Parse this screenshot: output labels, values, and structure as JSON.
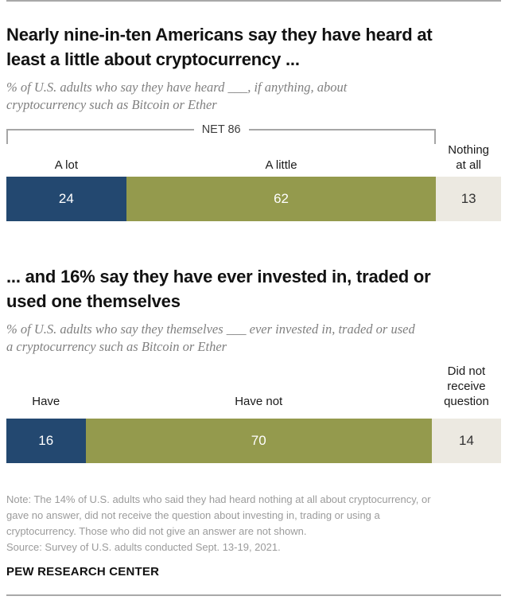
{
  "colors": {
    "dark_blue": "#234870",
    "olive_green": "#949A4D",
    "light_gray": "#ECE9E1",
    "rule_gray": "#A9A9A9"
  },
  "chart_data": [
    {
      "type": "bar",
      "orientation": "horizontal",
      "stacked": true,
      "unit": "percent",
      "axis_range": [
        0,
        100
      ],
      "title": "Nearly nine-in-ten Americans say they have heard at least a little about cryptocurrency ...",
      "title_lines": [
        "Nearly nine-in-ten Americans say they have heard at",
        "least a little about cryptocurrency ..."
      ],
      "subtitle": "% of U.S. adults who say they have heard ___, if anything, about cryptocurrency such as Bitcoin or Ether",
      "subtitle_lines": [
        "% of U.S. adults who say they have heard ___, if anything, about",
        "cryptocurrency such as Bitcoin or Ether"
      ],
      "net": {
        "label": "NET 86",
        "value": 86
      },
      "categories": [
        "A lot",
        "A little",
        "Nothing at all"
      ],
      "values": [
        24,
        62,
        13
      ],
      "segments": [
        {
          "label": "A lot",
          "value": 24,
          "color": "#234870",
          "value_color": "#FFFFFF"
        },
        {
          "label": "A little",
          "value": 62,
          "color": "#949A4D",
          "value_color": "#FFFFFF"
        },
        {
          "label": "Nothing at all",
          "label_lines": [
            "Nothing",
            "at all"
          ],
          "value": 13,
          "color": "#ECE9E1",
          "value_color": "#333333"
        }
      ]
    },
    {
      "type": "bar",
      "orientation": "horizontal",
      "stacked": true,
      "unit": "percent",
      "axis_range": [
        0,
        100
      ],
      "title": "... and 16% say they have ever invested in, traded or used one themselves",
      "title_lines": [
        "... and 16% say they have ever invested in, traded or",
        "used one themselves"
      ],
      "subtitle": "% of U.S. adults who say they themselves ___ ever invested in, traded or used a cryptocurrency such as Bitcoin or Ether",
      "subtitle_lines": [
        "% of U.S. adults who say they themselves ___ ever invested in, traded or used",
        "a cryptocurrency such as Bitcoin or Ether"
      ],
      "categories": [
        "Have",
        "Have not",
        "Did not receive question"
      ],
      "values": [
        16,
        70,
        14
      ],
      "segments": [
        {
          "label": "Have",
          "value": 16,
          "color": "#234870",
          "value_color": "#FFFFFF"
        },
        {
          "label": "Have not",
          "value": 70,
          "color": "#949A4D",
          "value_color": "#FFFFFF"
        },
        {
          "label": "Did not receive question",
          "label_lines": [
            "Did not",
            "receive",
            "question"
          ],
          "value": 14,
          "color": "#ECE9E1",
          "value_color": "#333333"
        }
      ]
    }
  ],
  "footer": {
    "note_lines": [
      "Note: The 14% of U.S. adults who said they had heard nothing at all about cryptocurrency, or",
      "gave no answer, did not receive the question about investing in, trading or using a",
      "cryptocurrency. Those who did not give an answer are not shown."
    ],
    "source": "Source: Survey of U.S. adults conducted Sept. 13-19, 2021.",
    "brand": "PEW RESEARCH CENTER"
  }
}
